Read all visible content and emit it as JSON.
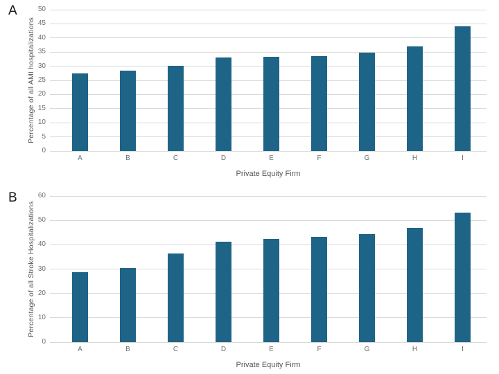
{
  "page": {
    "background": "#ffffff"
  },
  "colors": {
    "bar": "#1e6486",
    "gridline": "#d9d9d9",
    "tick_text": "#6f6f6f",
    "axis_title_text": "#565656",
    "panel_label_text": "#161616"
  },
  "chart_data": [
    {
      "type": "bar",
      "panel_label": "A",
      "title": "",
      "categories": [
        "A",
        "B",
        "C",
        "D",
        "E",
        "F",
        "G",
        "H",
        "I"
      ],
      "values": [
        27.4,
        28.5,
        30.2,
        33.1,
        33.4,
        33.6,
        34.8,
        37.0,
        44.2
      ],
      "xlabel": "Private Equity Firm",
      "ylabel": "Percentage of all AMI hospitalizations",
      "ylim": [
        0,
        50
      ],
      "yticks": [
        0,
        5,
        10,
        15,
        20,
        25,
        30,
        35,
        40,
        45,
        50
      ],
      "grid": true,
      "legend": "none"
    },
    {
      "type": "bar",
      "panel_label": "B",
      "title": "",
      "categories": [
        "A",
        "B",
        "C",
        "D",
        "E",
        "F",
        "G",
        "H",
        "I"
      ],
      "values": [
        28.8,
        30.4,
        36.5,
        41.3,
        42.3,
        43.3,
        44.3,
        46.9,
        53.3
      ],
      "xlabel": "Private Equity Firm",
      "ylabel": "Percentage of all Stroke Hospitalizations",
      "ylim": [
        0,
        60
      ],
      "yticks": [
        0,
        10,
        20,
        30,
        40,
        50,
        60
      ],
      "grid": true,
      "legend": "none"
    }
  ]
}
